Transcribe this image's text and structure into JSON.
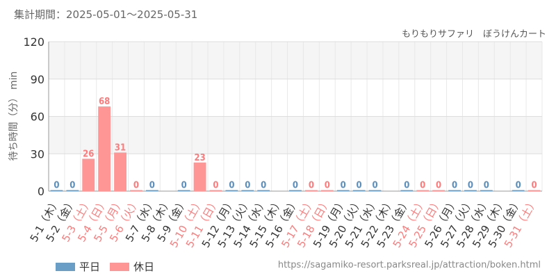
{
  "header": {
    "period": "集計期間：2025-05-01～2025-05-31",
    "subtitle": "もりもりサファリ　ぼうけんカート"
  },
  "footer": {
    "url": "https://sagamiko-resort.parksreal.jp/attraction/boken.html"
  },
  "colors": {
    "weekday": "#6a9ec7",
    "holiday": "#ff9696",
    "holiday_label": "#ff7a7a",
    "weekday_label": "#333333",
    "bar_value_weekday": "#5a8fbd",
    "bar_value_holiday": "#ff7a7a"
  },
  "chart_data": {
    "type": "bar",
    "ylabel": "待ち時間（分） min",
    "ylim": [
      0,
      120
    ],
    "yticks": [
      0,
      30,
      60,
      90,
      120
    ],
    "grid": true,
    "legend_placement": "bottom-left",
    "legend": [
      {
        "key": "weekday",
        "label": "平日"
      },
      {
        "key": "holiday",
        "label": "休日"
      }
    ],
    "categories": [
      "5-1（木）",
      "5-2（金）",
      "5-3（土）",
      "5-4（日）",
      "5-5（月）",
      "5-6（火）",
      "5-7（水）",
      "5-8（木）",
      "5-9（金）",
      "5-10（土）",
      "5-11（日）",
      "5-12（月）",
      "5-13（火）",
      "5-14（水）",
      "5-15（木）",
      "5-16（金）",
      "5-17（土）",
      "5-18（日）",
      "5-19（月）",
      "5-20（火）",
      "5-21（水）",
      "5-22（木）",
      "5-23（金）",
      "5-24（土）",
      "5-25（日）",
      "5-26（月）",
      "5-27（火）",
      "5-28（水）",
      "5-29（木）",
      "5-30（金）",
      "5-31（土）"
    ],
    "day_type": [
      "weekday",
      "weekday",
      "holiday",
      "holiday",
      "holiday",
      "holiday",
      "weekday",
      "weekday",
      "weekday",
      "holiday",
      "holiday",
      "weekday",
      "weekday",
      "weekday",
      "weekday",
      "weekday",
      "holiday",
      "holiday",
      "weekday",
      "weekday",
      "weekday",
      "weekday",
      "weekday",
      "holiday",
      "holiday",
      "weekday",
      "weekday",
      "weekday",
      "weekday",
      "weekday",
      "holiday"
    ],
    "values": [
      0,
      0,
      26,
      68,
      31,
      0,
      0,
      null,
      0,
      23,
      0,
      0,
      0,
      0,
      null,
      0,
      0,
      0,
      0,
      0,
      0,
      null,
      0,
      0,
      0,
      0,
      0,
      0,
      null,
      0,
      0
    ]
  }
}
